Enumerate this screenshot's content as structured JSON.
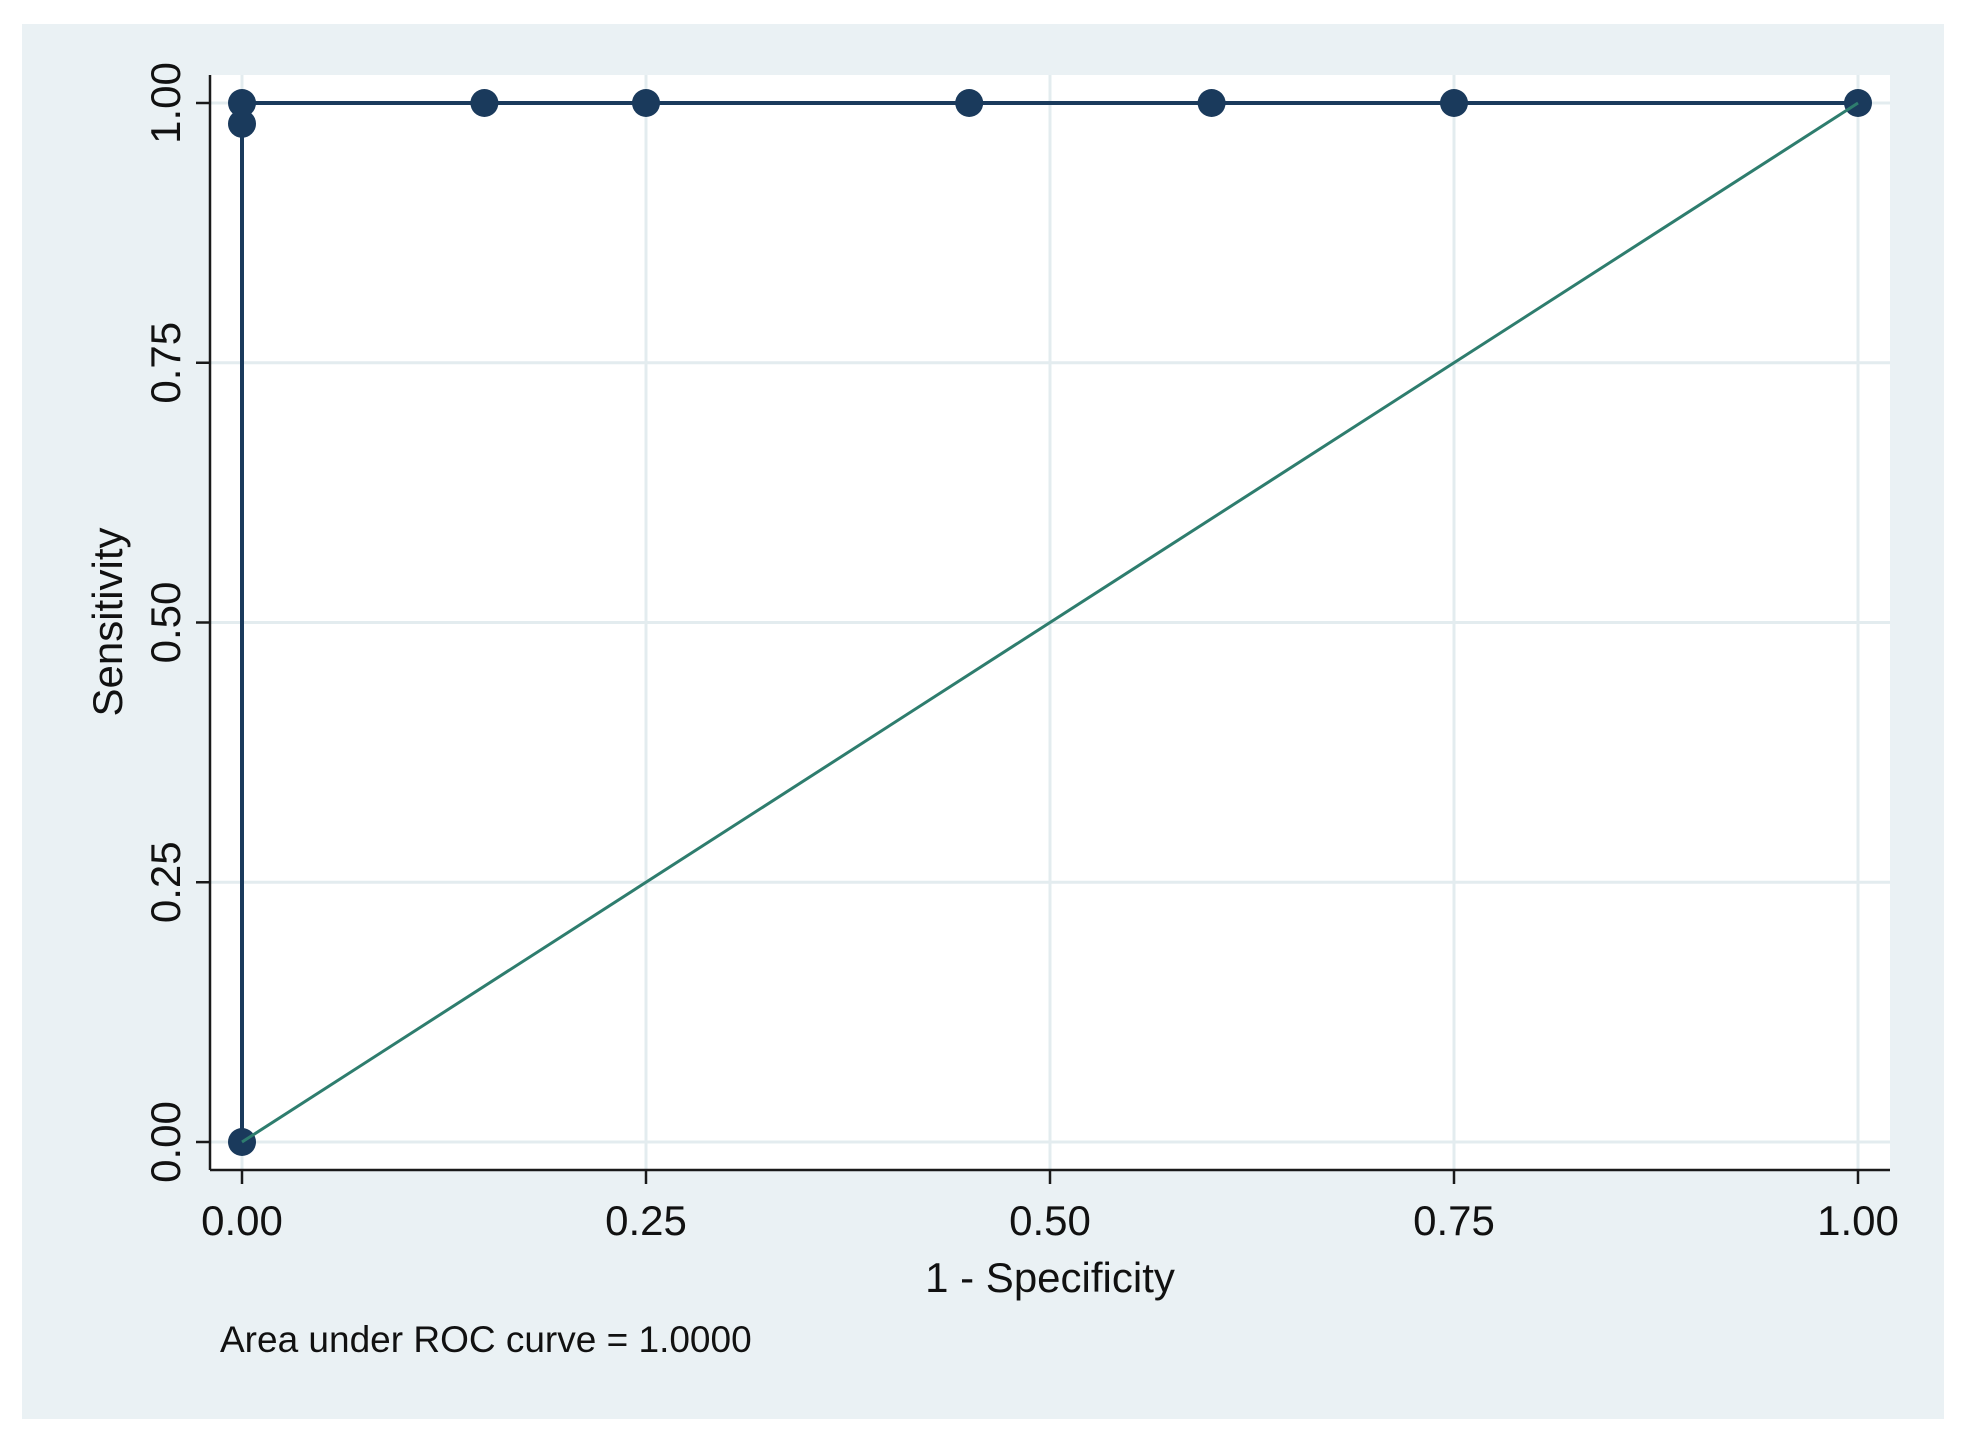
{
  "chart_data": {
    "type": "line",
    "title": "",
    "xlabel": "1 - Specificity",
    "ylabel": "Sensitivity",
    "xlim": [
      0,
      1
    ],
    "ylim": [
      0,
      1
    ],
    "x_ticks": [
      "0.00",
      "0.25",
      "0.50",
      "0.75",
      "1.00"
    ],
    "y_ticks": [
      "0.00",
      "0.25",
      "0.50",
      "0.75",
      "1.00"
    ],
    "grid": true,
    "legend": "none",
    "annotation": "Area under ROC curve = 1.0000",
    "series": [
      {
        "kind": "roc-curve",
        "color": "#1a3a5c",
        "markers": true,
        "x": [
          0.0,
          0.0,
          0.0,
          0.15,
          0.25,
          0.45,
          0.6,
          0.75,
          1.0
        ],
        "y": [
          0.0,
          0.98,
          1.0,
          1.0,
          1.0,
          1.0,
          1.0,
          1.0,
          1.0
        ]
      },
      {
        "kind": "reference-line",
        "color": "#2e7d6e",
        "markers": false,
        "x": [
          0.0,
          1.0
        ],
        "y": [
          0.0,
          1.0
        ]
      }
    ],
    "colors": {
      "outer_background": "#eaf1f4",
      "plot_background": "#ffffff",
      "gridline": "#e3ecef",
      "axis": "#1a1a1a"
    }
  }
}
